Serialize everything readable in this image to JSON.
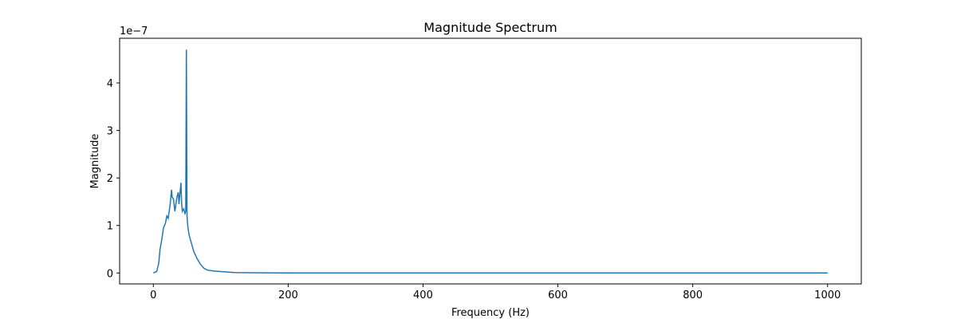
{
  "chart_data": {
    "type": "line",
    "title": "Magnitude Spectrum",
    "xlabel": "Frequency (Hz)",
    "ylabel": "Magnitude",
    "y_multiplier_label": "1e−7",
    "xlim": [
      -50,
      1050
    ],
    "ylim": [
      -0.23,
      4.94
    ],
    "x_ticks": [
      0,
      200,
      400,
      600,
      800,
      1000
    ],
    "x_tick_labels": [
      "0",
      "200",
      "400",
      "600",
      "800",
      "1000"
    ],
    "y_ticks": [
      0,
      1,
      2,
      3,
      4
    ],
    "y_tick_labels": [
      "0",
      "1",
      "2",
      "3",
      "4"
    ],
    "grid": false,
    "color": "#1f77b4",
    "series": [
      {
        "x": [
          0,
          5,
          8,
          10,
          13,
          15,
          18,
          20,
          22,
          25,
          27,
          28,
          30,
          32,
          35,
          37,
          38,
          40,
          41,
          42,
          43,
          45,
          47,
          48,
          49,
          50,
          51,
          52,
          53,
          55,
          57,
          60,
          65,
          70,
          75,
          80,
          90,
          100,
          110,
          120,
          150,
          200,
          300,
          500,
          700,
          1000
        ],
        "y": [
          0,
          0.03,
          0.2,
          0.5,
          0.75,
          0.95,
          1.05,
          1.2,
          1.15,
          1.45,
          1.75,
          1.6,
          1.55,
          1.3,
          1.6,
          1.7,
          1.45,
          1.75,
          1.9,
          1.45,
          1.3,
          1.35,
          1.25,
          1.3,
          4.7,
          1.2,
          1.0,
          0.9,
          0.8,
          0.7,
          0.6,
          0.45,
          0.3,
          0.18,
          0.1,
          0.06,
          0.04,
          0.03,
          0.02,
          0.01,
          0.005,
          0.002,
          0.001,
          0.0005,
          0.0003,
          0.0002
        ]
      }
    ]
  }
}
